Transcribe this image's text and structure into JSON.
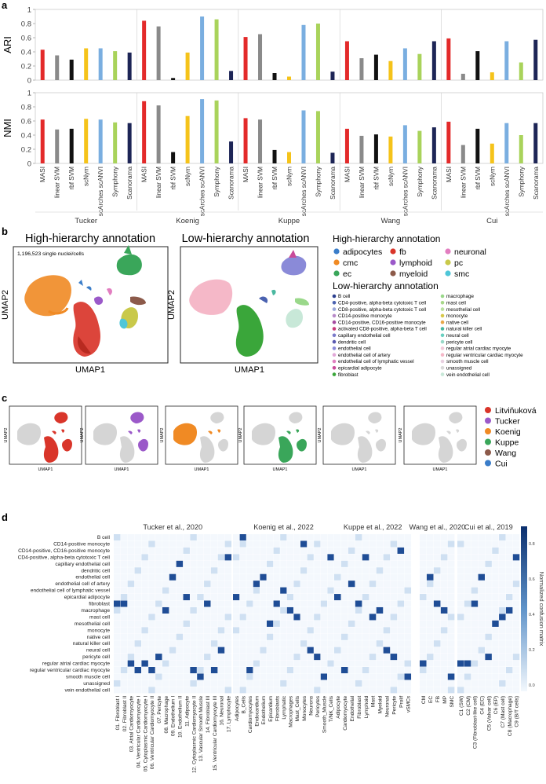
{
  "panel_letters": {
    "a": "a",
    "b": "b",
    "c": "c",
    "d": "d"
  },
  "colors": {
    "MASI": "#e32a2a",
    "linear SVM": "#8a8a8a",
    "rbf SVM": "#111111",
    "scNym": "#f5c31a",
    "scArches scANVI": "#7aaee0",
    "Symphony": "#a9d35b",
    "Scanorama": "#1d2556"
  },
  "chart_data": [
    {
      "type": "bar",
      "ylabel": "ARI",
      "ylim": [
        0,
        1
      ],
      "yticks": [
        "0",
        "0.2",
        "0.4",
        "0.6",
        "0.8",
        "1"
      ],
      "groups": [
        "Tucker",
        "Koenig",
        "Kuppe",
        "Wang",
        "Cui"
      ],
      "methods": [
        "MASI",
        "linear SVM",
        "rbf SVM",
        "scNym",
        "scArches scANVI",
        "Symphony",
        "Scanorama"
      ],
      "series": [
        {
          "group": "Tucker",
          "values": [
            0.43,
            0.35,
            0.29,
            0.45,
            0.45,
            0.41,
            0.39
          ]
        },
        {
          "group": "Koenig",
          "values": [
            0.84,
            0.76,
            0.03,
            0.39,
            0.9,
            0.86,
            0.13
          ]
        },
        {
          "group": "Kuppe",
          "values": [
            0.61,
            0.65,
            0.1,
            0.05,
            0.78,
            0.8,
            0.12
          ]
        },
        {
          "group": "Wang",
          "values": [
            0.55,
            0.31,
            0.36,
            0.27,
            0.45,
            0.37,
            0.55
          ]
        },
        {
          "group": "Cui",
          "values": [
            0.59,
            0.09,
            0.41,
            0.11,
            0.55,
            0.25,
            0.57
          ]
        }
      ]
    },
    {
      "type": "bar",
      "ylabel": "NMI",
      "ylim": [
        0,
        1
      ],
      "yticks": [
        "0",
        "0.2",
        "0.4",
        "0.6",
        "0.8",
        "1"
      ],
      "groups": [
        "Tucker",
        "Koenig",
        "Kuppe",
        "Wang",
        "Cui"
      ],
      "methods": [
        "MASI",
        "linear SVM",
        "rbf SVM",
        "scNym",
        "scArches scANVI",
        "Symphony",
        "Scanorama"
      ],
      "series": [
        {
          "group": "Tucker",
          "values": [
            0.62,
            0.48,
            0.49,
            0.63,
            0.62,
            0.58,
            0.57
          ]
        },
        {
          "group": "Koenig",
          "values": [
            0.88,
            0.82,
            0.16,
            0.67,
            0.91,
            0.89,
            0.31
          ]
        },
        {
          "group": "Kuppe",
          "values": [
            0.64,
            0.62,
            0.19,
            0.16,
            0.75,
            0.74,
            0.15
          ]
        },
        {
          "group": "Wang",
          "values": [
            0.49,
            0.39,
            0.41,
            0.38,
            0.54,
            0.46,
            0.51
          ]
        },
        {
          "group": "Cui",
          "values": [
            0.59,
            0.26,
            0.49,
            0.28,
            0.57,
            0.4,
            0.57
          ]
        }
      ]
    }
  ],
  "panel_b": {
    "title_left": "High-hierarchy annotation",
    "title_right": "Low-hierarchy annotation",
    "count_label": "1,196,523 single nuclei/cells",
    "xaxis": "UMAP1",
    "yaxis": "UMAP2",
    "legend_high_title": "High-hierarchy annotation",
    "legend_high": [
      {
        "label": "adipocytes",
        "color": "#3a7dc9"
      },
      {
        "label": "fb",
        "color": "#d9352a"
      },
      {
        "label": "neuronal",
        "color": "#e27ec0"
      },
      {
        "label": "cmc",
        "color": "#f08a24"
      },
      {
        "label": "lymphoid",
        "color": "#9b59c9"
      },
      {
        "label": "pc",
        "color": "#c9c94a"
      },
      {
        "label": "ec",
        "color": "#3aa65a"
      },
      {
        "label": "myeloid",
        "color": "#8c5a4a"
      },
      {
        "label": "smc",
        "color": "#4fc6d8"
      }
    ],
    "legend_low_title": "Low-hierarchy annotation",
    "legend_low_left": [
      {
        "label": "B cell",
        "color": "#2b3f8f"
      },
      {
        "label": "CD4-positive, alpha-beta cytotoxic T cell",
        "color": "#4a62b0"
      },
      {
        "label": "CD8-positive, alpha-beta cytotoxic T cell",
        "color": "#9aa6d8"
      },
      {
        "label": "CD14-positive monocyte",
        "color": "#b88ac9"
      },
      {
        "label": "CD14-positive, CD16-positive monocyte",
        "color": "#a44aa0"
      },
      {
        "label": "activated CD8-positive, alpha-beta T cell",
        "color": "#c93a7a"
      },
      {
        "label": "capillary endothelial cell",
        "color": "#7a7ac9"
      },
      {
        "label": "dendritic cell",
        "color": "#5a5ab0"
      },
      {
        "label": "endothelial cell",
        "color": "#8a8ad8"
      },
      {
        "label": "endothelial cell of artery",
        "color": "#e2a8d8"
      },
      {
        "label": "endothelial cell of lymphatic vessel",
        "color": "#e080c0"
      },
      {
        "label": "epicardial adipocyte",
        "color": "#c94a9a"
      },
      {
        "label": "fibroblast",
        "color": "#3aa63a"
      }
    ],
    "legend_low_right": [
      {
        "label": "macrophage",
        "color": "#9ad88a"
      },
      {
        "label": "mast cell",
        "color": "#a8d88a"
      },
      {
        "label": "mesothelial cell",
        "color": "#b8e0a0"
      },
      {
        "label": "monocyte",
        "color": "#d8c84a"
      },
      {
        "label": "native cell",
        "color": "#e8a84a"
      },
      {
        "label": "natural killer cell",
        "color": "#4ab8a0"
      },
      {
        "label": "neural cell",
        "color": "#6ad0c0"
      },
      {
        "label": "pericyte cell",
        "color": "#9ad8c8"
      },
      {
        "label": "regular atrial cardiac myocyte",
        "color": "#f2c8d8"
      },
      {
        "label": "regular ventricular cardiac myocyte",
        "color": "#f5b8c8"
      },
      {
        "label": "smooth muscle cell",
        "color": "#e8d0e0"
      },
      {
        "label": "unassigned",
        "color": "#d8d8d8"
      },
      {
        "label": "vein endothelial cell",
        "color": "#c8e8d8"
      }
    ]
  },
  "panel_c": {
    "xaxis": "UMAP1",
    "yaxis": "UMAP2",
    "legend": [
      {
        "label": "Litviňuková",
        "color": "#d9352a"
      },
      {
        "label": "Tucker",
        "color": "#9b59c9"
      },
      {
        "label": "Koenig",
        "color": "#f08a24"
      },
      {
        "label": "Kuppe",
        "color": "#3aa65a"
      },
      {
        "label": "Wang",
        "color": "#8c5a4a"
      },
      {
        "label": "Cui",
        "color": "#3a7dc9"
      }
    ]
  },
  "panel_d": {
    "colorbar_label": "Normalized confusion matrix",
    "colorbar_ticks": [
      "0.8",
      "0.6",
      "0.4",
      "0.2",
      "0.0"
    ],
    "study_titles": [
      "Tucker et al., 2020",
      "Koenig et al., 2022",
      "Kuppe et al., 2022",
      "Wang et al., 2020",
      "Cui et al., 2019"
    ],
    "rows": [
      "B cell",
      "CD14-positive monocyte",
      "CD14-positive, CD16-positive monocyte",
      "CD4-positive, alpha-beta cytotoxic T cell",
      "capillary endothelial cell",
      "dendritic cell",
      "endothelial cell",
      "endothelial cell of artery",
      "endothelial cell of lymphatic vessel",
      "epicardial adipocyte",
      "fibroblast",
      "macrophage",
      "mast cell",
      "mesothelial cell",
      "monocyte",
      "native cell",
      "natural killer cell",
      "neural cell",
      "pericyte cell",
      "regular atrial cardiac myocyte",
      "regular ventricular cardiac myocyte",
      "smooth muscle cell",
      "unassigned",
      "vein endothelial cell"
    ],
    "columns": [
      [
        "01. Fibroblast I",
        "02. Fibroblast II",
        "03. Atrial Cardiomyocyte",
        "04. Ventricular Cardiomyocyte I",
        "05. Cytoplasmic Cardiomyocyte I",
        "06. Ventricular Cardiomyocyte II",
        "07. Pericyte",
        "08. Macrophage",
        "09. Endothelium I",
        "10. Endothelium II",
        "11. Adipocyte",
        "12. Cytoplasmic Cardiomyocyte II",
        "13. Vascular Smooth Muscle",
        "14. Fibroblast III",
        "15. Ventricular Cardiomyocyte III",
        "16. Neuronal",
        "17. Lymphocyte"
      ],
      [
        "Adipocytes",
        "B_Cells",
        "Cardiomyocytes",
        "Endocardium",
        "Endothelium",
        "Epicardium",
        "Fibroblasts",
        "Lymphatic",
        "Macrophages",
        "Mast_Cells",
        "Monocytes",
        "Neurons",
        "Pericytes",
        "Smooth_Muscle",
        "T/NK_Cells"
      ],
      [
        "Adipocyte",
        "Cardiomyocyte",
        "Endothelial",
        "Fibroblast",
        "Lymphoid",
        "Mast",
        "Myeloid",
        "Neuronal",
        "Pericyte",
        "Prolif",
        "vSMCs"
      ],
      [
        "CM",
        "EC",
        "FB",
        "MP",
        "SMC"
      ],
      [
        "C1 (SW)",
        "C2 (CM)",
        "C3 (Fibroblast-like cell)",
        "C4 (EC)",
        "C5 (Valvar cell)",
        "C6 (EP)",
        "C7 (Mast cell)",
        "C8 (Macrophage)",
        "C9 (B/T cells)"
      ]
    ],
    "highlights": [
      [
        [
          10,
          0
        ],
        [
          10,
          1
        ],
        [
          19,
          2
        ],
        [
          20,
          3
        ],
        [
          19,
          4
        ],
        [
          20,
          5
        ],
        [
          18,
          6
        ],
        [
          11,
          7
        ],
        [
          6,
          8
        ],
        [
          4,
          9
        ],
        [
          9,
          10
        ],
        [
          20,
          11
        ],
        [
          21,
          12
        ],
        [
          10,
          13
        ],
        [
          20,
          14
        ],
        [
          17,
          15
        ],
        [
          3,
          16
        ]
      ],
      [
        [
          9,
          0
        ],
        [
          0,
          1
        ],
        [
          20,
          2
        ],
        [
          7,
          3
        ],
        [
          6,
          4
        ],
        [
          13,
          5
        ],
        [
          10,
          6
        ],
        [
          8,
          7
        ],
        [
          11,
          8
        ],
        [
          12,
          9
        ],
        [
          1,
          10
        ],
        [
          17,
          11
        ],
        [
          18,
          12
        ],
        [
          21,
          13
        ],
        [
          3,
          14
        ]
      ],
      [
        [
          9,
          0
        ],
        [
          20,
          1
        ],
        [
          7,
          2
        ],
        [
          10,
          3
        ],
        [
          3,
          4
        ],
        [
          12,
          5
        ],
        [
          11,
          6
        ],
        [
          17,
          7
        ],
        [
          18,
          8
        ],
        [
          2,
          9
        ],
        [
          21,
          10
        ]
      ],
      [
        [
          19,
          0
        ],
        [
          6,
          1
        ],
        [
          10,
          2
        ],
        [
          11,
          3
        ],
        [
          21,
          4
        ]
      ],
      [
        [
          19,
          1
        ],
        [
          19,
          0
        ],
        [
          10,
          2
        ],
        [
          6,
          3
        ],
        [
          18,
          4
        ],
        [
          13,
          5
        ],
        [
          12,
          6
        ],
        [
          11,
          7
        ],
        [
          3,
          8
        ]
      ]
    ]
  }
}
